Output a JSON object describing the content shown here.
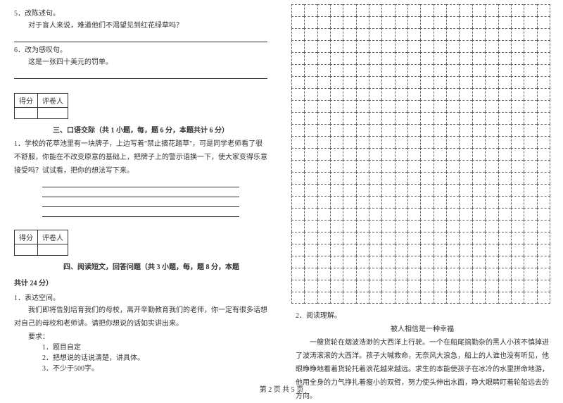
{
  "left": {
    "q5": {
      "num": "5．改陈述句。",
      "text": "对于盲人来说，难道他们不渴望见到红花绿草吗？"
    },
    "q6": {
      "num": "6．改为感叹句。",
      "text": "这是一张四十美元的罚单。"
    },
    "score": {
      "col1": "得分",
      "col2": "评卷人"
    },
    "section3": {
      "title": "三、口语交际（共 1 小题，每，题 6 分，本题共计 6 分）",
      "q1": "1．学校的花草池里有一块牌子，上边写着\"禁止摘花踏草\"，可是同学老师看了很不舒服，你能在不改变原意的基础上，把牌子上的警示语换一下，使大家变得乐意接受吗？试试看，把你的想法写下来。"
    },
    "section4": {
      "title": "四、阅读短文，回答问题（共 3 小题，每，题 8 分，本题",
      "title2": "共计 24 分）",
      "q1label": "1．表达空间。",
      "q1text": "我们即将告别培育我们的母校，离开辛勤教育我们的老师，你一定有很多话想对自己的母校和老师讲。请把你想说的话如实讲出来。",
      "req_label": "要求：",
      "req1": "1．题目自定",
      "req2": "2．把想说的话说清楚，讲具体。",
      "req3": "3．不少于500字。"
    }
  },
  "right": {
    "grid": {
      "rows": 25,
      "cols": 20
    },
    "q2label": "2．阅读理解。",
    "story_title": "被人相信是一种幸福",
    "story": "一艘货轮在烟波浩渺的大西洋上行驶。一个在船尾搞勤杂的黑人小孩不慎掉进了波涛滚滚的大西洋。孩子大喊救命，无奈风大浪急，船上的人谁也没有听见，他眼睁睁地看着货轮托着浪花越来越远。求生的本能使孩子在冰冷的水里拼命地游，他用全身的力气挣扎着瘦小的双臂，努力使头伸出水面，睁大眼睛盯着轮船远去的方向。"
  },
  "footer": "第 2 页 共 5 页"
}
